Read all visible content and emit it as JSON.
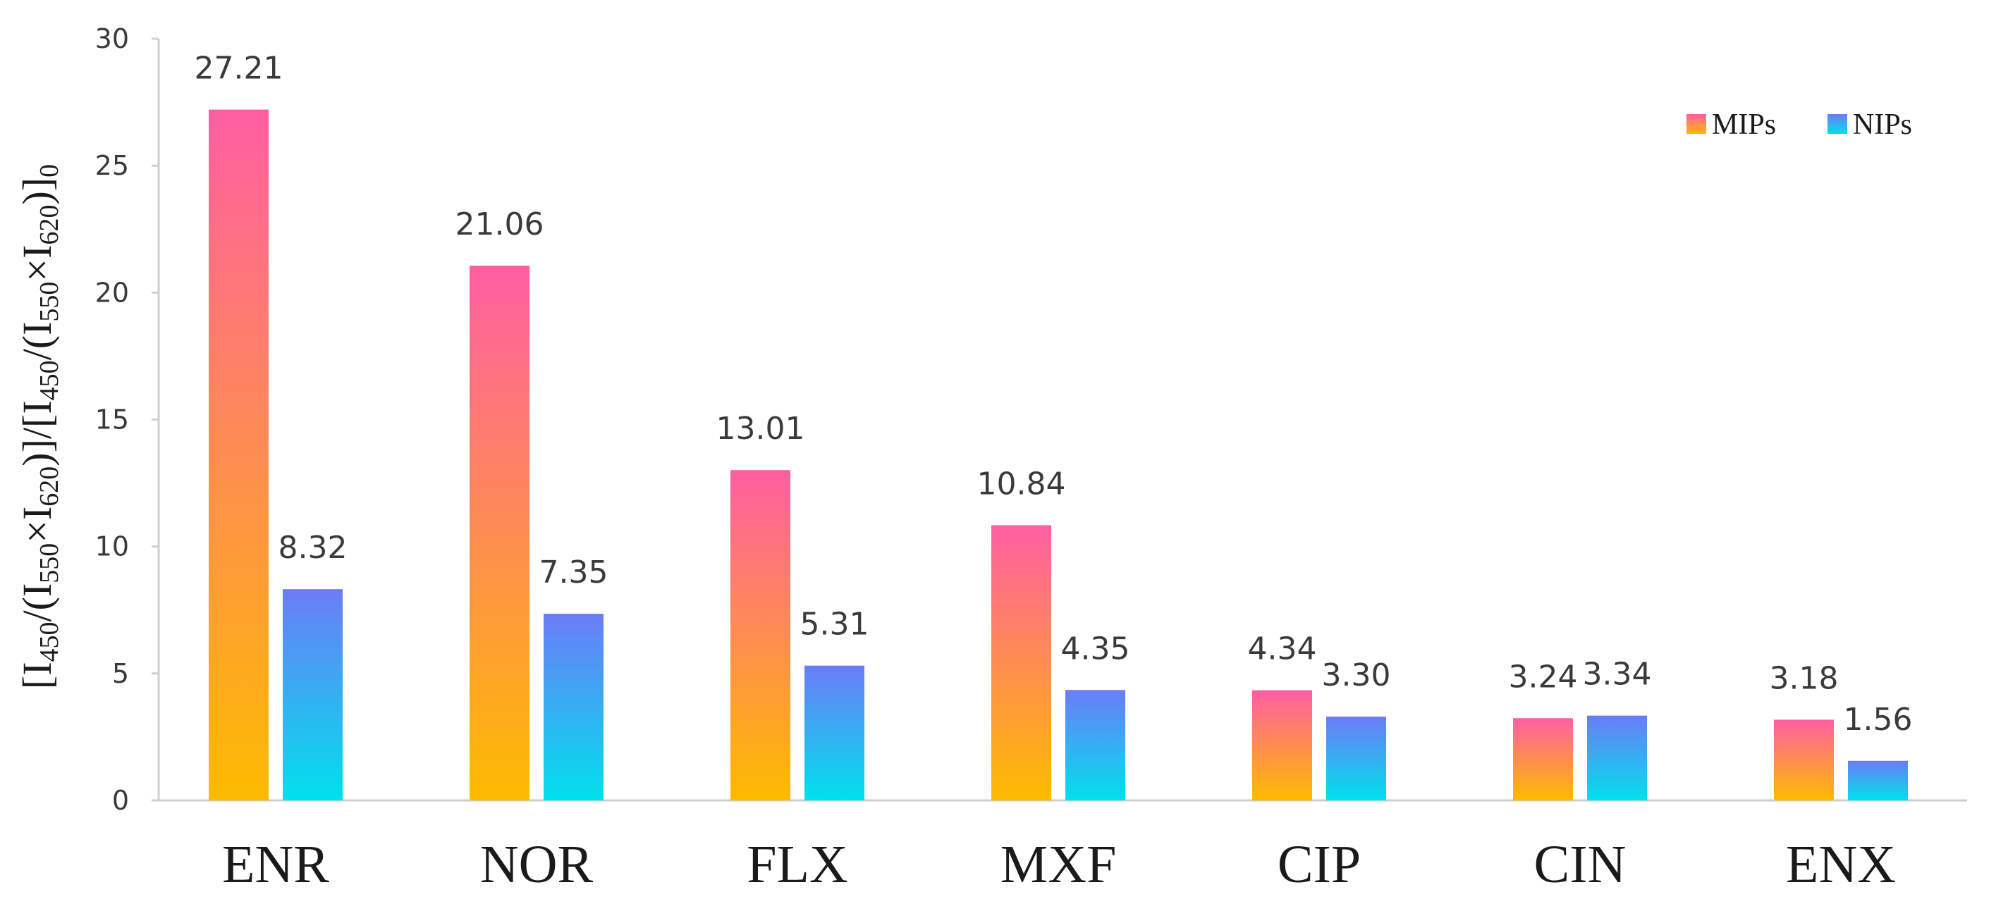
{
  "chart_data": {
    "type": "bar",
    "title": "",
    "xlabel": "",
    "ylabel": {
      "parts": [
        {
          "text": "[I",
          "sub": false
        },
        {
          "text": "450",
          "sub": true
        },
        {
          "text": "/(I",
          "sub": false
        },
        {
          "text": "550",
          "sub": true
        },
        {
          "text": "×I",
          "sub": false
        },
        {
          "text": "620",
          "sub": true
        },
        {
          "text": ")]/[I",
          "sub": false
        },
        {
          "text": "450",
          "sub": true
        },
        {
          "text": "/(I",
          "sub": false
        },
        {
          "text": "550",
          "sub": true
        },
        {
          "text": "×I",
          "sub": false
        },
        {
          "text": "620",
          "sub": true
        },
        {
          "text": ")]",
          "sub": false
        },
        {
          "text": "0",
          "sub": true
        }
      ]
    },
    "ylim": [
      0,
      30
    ],
    "yticks": [
      0,
      5,
      10,
      15,
      20,
      25,
      30
    ],
    "grid": false,
    "legend_position": "top-right",
    "categories": [
      "ENR",
      "NOR",
      "FLX",
      "MXF",
      "CIP",
      "CIN",
      "ENX"
    ],
    "series": [
      {
        "name": "MIPs",
        "values": [
          27.21,
          21.06,
          13.01,
          10.84,
          4.34,
          3.24,
          3.18
        ],
        "labels": [
          "27.21",
          "21.06",
          "13.01",
          "10.84",
          "4.34",
          "3.24",
          "3.18"
        ],
        "gradient": {
          "bottom": "#fdbb00",
          "top": "#ff5fa2"
        }
      },
      {
        "name": "NIPs",
        "values": [
          8.32,
          7.35,
          5.31,
          4.35,
          3.3,
          3.34,
          1.56
        ],
        "labels": [
          "8.32",
          "7.35",
          "5.31",
          "4.35",
          "3.30",
          "3.34",
          "1.56"
        ],
        "gradient": {
          "bottom": "#00e1ec",
          "top": "#6b7cf7"
        }
      }
    ],
    "axis_color": "#cfcfcf"
  }
}
